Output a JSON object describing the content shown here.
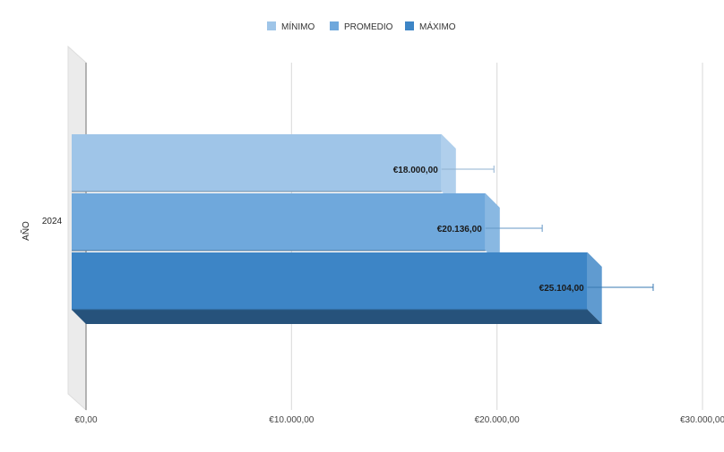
{
  "chart_data": {
    "type": "bar",
    "orientation": "horizontal",
    "style": "3d",
    "categories": [
      "2024"
    ],
    "series": [
      {
        "name": "MÍNIMO",
        "values": [
          18000
        ],
        "error_high": [
          19850
        ],
        "label": "€18.000,00",
        "color": "#9fc5e8"
      },
      {
        "name": "PROMEDIO",
        "values": [
          20136
        ],
        "error_high": [
          22200
        ],
        "label": "€20.136,00",
        "color": "#6fa8dc"
      },
      {
        "name": "MÁXIMO",
        "values": [
          25104
        ],
        "error_high": [
          27600
        ],
        "label": "€25.104,00",
        "color": "#3d85c6"
      }
    ],
    "ylabel": "AÑO",
    "xlabel": "",
    "xlim": [
      0,
      30000
    ],
    "x_ticks": [
      0,
      10000,
      20000,
      30000
    ],
    "x_tick_labels": [
      "€0,00",
      "€10.000,00",
      "€20.000,00",
      "€30.000,00"
    ],
    "grid": true,
    "legend_position": "top"
  }
}
